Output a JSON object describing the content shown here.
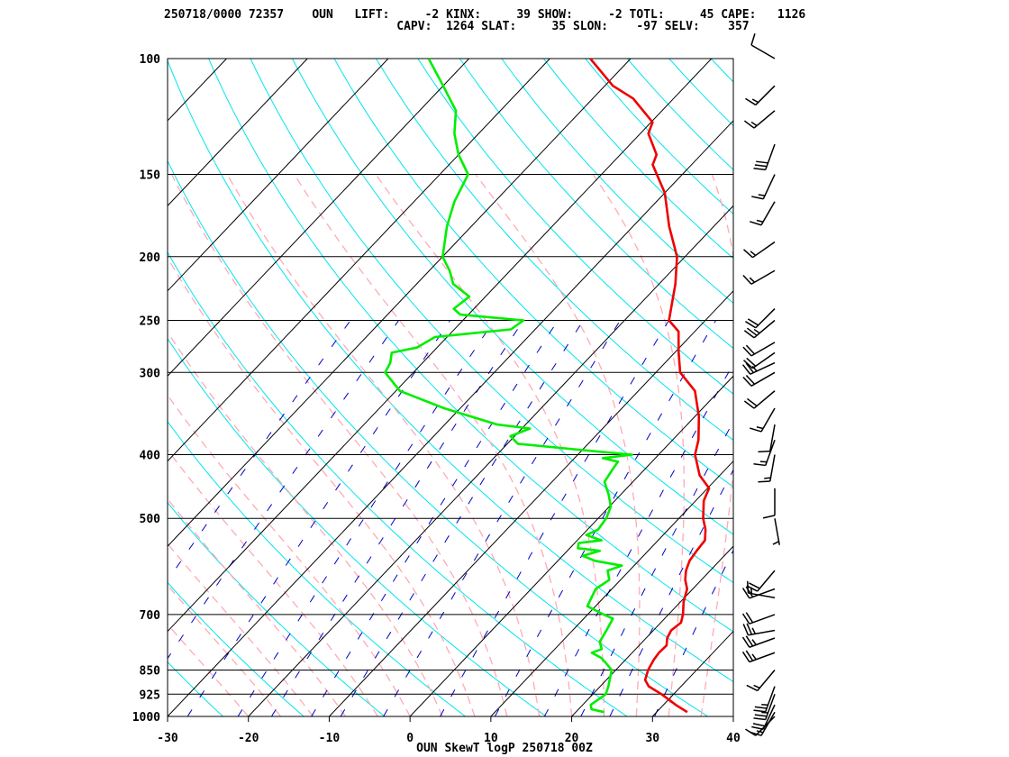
{
  "header": {
    "line1": "250718/0000 72357    OUN   LIFT:     -2 KINX:     39 SHOW:     -2 TOTL:     45 CAPE:   1126",
    "line2": "                                 CAPV:  1264 SLAT:     35 SLON:    -97 SELV:    357"
  },
  "colors": {
    "temperature": "#ee0000",
    "dewpoint": "#00ee00",
    "isotherm": "#000000",
    "isobar": "#000000",
    "dry_adiabat": "#00e5ee",
    "moist_adiabat": "#ffaab4",
    "mixing_ratio": "#0000cc",
    "wind_barb": "#000000"
  },
  "chart_data": {
    "type": "skew-t log-p",
    "title": "OUN SkewT logP 250718 00Z",
    "xlabel": "",
    "ylabel": "",
    "xlim": [
      -30,
      40
    ],
    "ylim": [
      1000,
      100
    ],
    "y_scale": "log",
    "grid": true,
    "x_ticks": [
      "-30",
      "-20",
      "-10",
      "0",
      "10",
      "20",
      "30",
      "40"
    ],
    "pressure_levels": [
      "100",
      "150",
      "200",
      "250",
      "300",
      "400",
      "500",
      "700",
      "850",
      "925",
      "1000"
    ],
    "series": [
      {
        "name": "temperature",
        "points": [
          [
            985,
            33.8
          ],
          [
            960,
            31.5
          ],
          [
            925,
            28.5
          ],
          [
            900,
            26.0
          ],
          [
            880,
            24.8
          ],
          [
            850,
            24.0
          ],
          [
            820,
            23.5
          ],
          [
            800,
            23.3
          ],
          [
            780,
            23.4
          ],
          [
            760,
            22.6
          ],
          [
            740,
            22.2
          ],
          [
            720,
            22.5
          ],
          [
            700,
            21.8
          ],
          [
            670,
            20.4
          ],
          [
            640,
            19.3
          ],
          [
            620,
            18.0
          ],
          [
            600,
            17.0
          ],
          [
            580,
            16.3
          ],
          [
            560,
            16.0
          ],
          [
            540,
            15.8
          ],
          [
            520,
            14.6
          ],
          [
            500,
            13.0
          ],
          [
            470,
            11.0
          ],
          [
            450,
            10.2
          ],
          [
            430,
            7.5
          ],
          [
            400,
            4.5
          ],
          [
            380,
            3.2
          ],
          [
            350,
            0.5
          ],
          [
            320,
            -3.0
          ],
          [
            300,
            -7.0
          ],
          [
            280,
            -9.5
          ],
          [
            260,
            -12.0
          ],
          [
            250,
            -14.5
          ],
          [
            220,
            -18.0
          ],
          [
            200,
            -21.0
          ],
          [
            180,
            -25.5
          ],
          [
            160,
            -30.0
          ],
          [
            145,
            -34.8
          ],
          [
            140,
            -35.5
          ],
          [
            130,
            -39.0
          ],
          [
            125,
            -39.8
          ],
          [
            115,
            -45.0
          ],
          [
            110,
            -49.0
          ],
          [
            100,
            -55.0
          ]
        ]
      },
      {
        "name": "dewpoint",
        "points": [
          [
            985,
            23.5
          ],
          [
            975,
            21.6
          ],
          [
            960,
            21.0
          ],
          [
            925,
            21.6
          ],
          [
            900,
            21.0
          ],
          [
            880,
            20.4
          ],
          [
            850,
            19.5
          ],
          [
            830,
            18.0
          ],
          [
            815,
            16.8
          ],
          [
            800,
            15.0
          ],
          [
            790,
            15.8
          ],
          [
            770,
            14.7
          ],
          [
            740,
            14.2
          ],
          [
            710,
            13.6
          ],
          [
            700,
            12.0
          ],
          [
            680,
            9.0
          ],
          [
            660,
            8.5
          ],
          [
            640,
            8.0
          ],
          [
            620,
            8.6
          ],
          [
            600,
            7.3
          ],
          [
            590,
            8.5
          ],
          [
            580,
            4.6
          ],
          [
            570,
            2.5
          ],
          [
            560,
            4.0
          ],
          [
            555,
            1.0
          ],
          [
            545,
            0.5
          ],
          [
            540,
            3.0
          ],
          [
            530,
            0.5
          ],
          [
            520,
            1.3
          ],
          [
            500,
            1.0
          ],
          [
            480,
            0.2
          ],
          [
            460,
            -1.5
          ],
          [
            440,
            -3.5
          ],
          [
            420,
            -4.0
          ],
          [
            410,
            -4.2
          ],
          [
            405,
            -6.5
          ],
          [
            400,
            -3.3
          ],
          [
            395,
            -8.6
          ],
          [
            385,
            -18.7
          ],
          [
            375,
            -20.5
          ],
          [
            365,
            -19.0
          ],
          [
            360,
            -23.5
          ],
          [
            340,
            -32.0
          ],
          [
            320,
            -39.5
          ],
          [
            300,
            -43.5
          ],
          [
            290,
            -44.0
          ],
          [
            280,
            -45.0
          ],
          [
            275,
            -42.5
          ],
          [
            265,
            -41.5
          ],
          [
            258,
            -33.0
          ],
          [
            250,
            -32.5
          ],
          [
            245,
            -41.0
          ],
          [
            240,
            -42.5
          ],
          [
            230,
            -42.0
          ],
          [
            220,
            -45.5
          ],
          [
            210,
            -47.5
          ],
          [
            200,
            -50.0
          ],
          [
            180,
            -53.0
          ],
          [
            165,
            -55.0
          ],
          [
            150,
            -56.5
          ],
          [
            140,
            -60.0
          ],
          [
            130,
            -63.0
          ],
          [
            120,
            -65.5
          ],
          [
            110,
            -70.0
          ],
          [
            100,
            -75.0
          ]
        ]
      }
    ],
    "wind_profile": [
      [
        1000,
        225,
        10
      ],
      [
        985,
        210,
        15
      ],
      [
        960,
        205,
        20
      ],
      [
        925,
        200,
        25
      ],
      [
        900,
        200,
        25
      ],
      [
        850,
        220,
        15
      ],
      [
        800,
        250,
        25
      ],
      [
        760,
        250,
        25
      ],
      [
        740,
        260,
        25
      ],
      [
        700,
        250,
        20
      ],
      [
        660,
        280,
        15
      ],
      [
        640,
        250,
        20
      ],
      [
        600,
        220,
        20
      ],
      [
        500,
        170,
        5
      ],
      [
        450,
        180,
        10
      ],
      [
        400,
        190,
        15
      ],
      [
        380,
        200,
        15
      ],
      [
        360,
        190,
        10
      ],
      [
        340,
        210,
        15
      ],
      [
        320,
        230,
        20
      ],
      [
        300,
        240,
        20
      ],
      [
        290,
        245,
        25
      ],
      [
        280,
        235,
        20
      ],
      [
        270,
        240,
        20
      ],
      [
        250,
        230,
        25
      ],
      [
        240,
        225,
        20
      ],
      [
        210,
        240,
        15
      ],
      [
        190,
        235,
        15
      ],
      [
        165,
        210,
        15
      ],
      [
        150,
        205,
        15
      ],
      [
        135,
        200,
        30
      ],
      [
        120,
        230,
        15
      ],
      [
        110,
        225,
        15
      ],
      [
        100,
        300,
        10
      ]
    ]
  }
}
